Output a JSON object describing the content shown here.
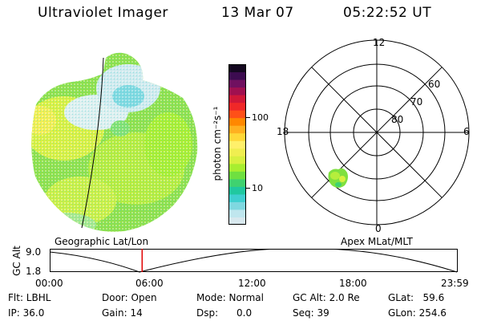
{
  "header": {
    "title": "Ultraviolet Imager",
    "date": "13 Mar 07",
    "time": "05:22:52 UT"
  },
  "colorbar": {
    "unit_label": "photon cm⁻²s⁻¹",
    "tick_high": "100",
    "tick_low": "10",
    "colors": [
      "#d8e8ee",
      "#bfe6ee",
      "#7fd8e0",
      "#3fcfd0",
      "#20c8a0",
      "#3fd270",
      "#6fe040",
      "#a8ee30",
      "#d8f040",
      "#f0ee50",
      "#fff06a",
      "#ffd838",
      "#ffb020",
      "#ff8800",
      "#ff5018",
      "#f02828",
      "#d01838",
      "#a01050",
      "#701060",
      "#3c0c50",
      "#140820"
    ]
  },
  "polar_plot": {
    "label_top": "12",
    "label_bottom": "0",
    "label_left": "18",
    "label_right": "6",
    "ring_60": "60",
    "ring_70": "70",
    "ring_80": "80"
  },
  "timeline": {
    "left_caption": "Geographic Lat/Lon",
    "right_caption": "Apex MLat/MLT",
    "axis_title": "GC Alt",
    "y_high": "9.0",
    "y_low": "1.8",
    "x_ticks": [
      "00:00",
      "06:00",
      "12:00",
      "18:00",
      "23:59"
    ],
    "marker_fraction": 0.227
  },
  "footer": {
    "flt": "Flt: LBHL",
    "ip": "IP: 36.0",
    "door": "Door: Open",
    "gain": "Gain: 14",
    "mode": "Mode: Normal",
    "dsp": "Dsp:      0.0",
    "gcalt": "GC Alt: 2.0 Re",
    "seq": "Seq: 39",
    "glat": "GLat:   59.6",
    "glon": "GLon: 254.6"
  }
}
